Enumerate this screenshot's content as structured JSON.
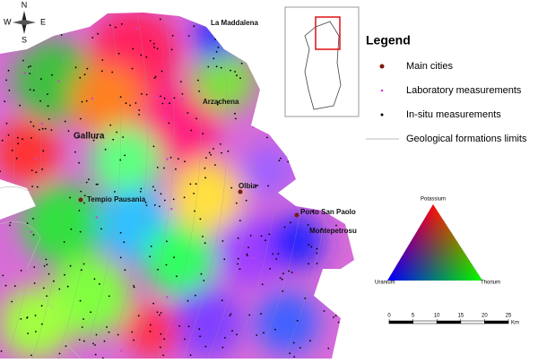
{
  "compass": {
    "n": "N",
    "s": "S",
    "e": "E",
    "w": "W"
  },
  "places": [
    {
      "label": "La Maddalena"
    },
    {
      "label": "Arzachena"
    },
    {
      "label": "Gallura"
    },
    {
      "label": "Olbia"
    },
    {
      "label": "Tempio Pausania"
    },
    {
      "label": "Porto San Paolo"
    },
    {
      "label": "Montepetrosu"
    }
  ],
  "legend": {
    "title": "Legend",
    "items": [
      {
        "label": "Main cities"
      },
      {
        "label": "Laboratory measurements"
      },
      {
        "label": "In-situ measurements"
      },
      {
        "label": "Geological formations limits"
      }
    ]
  },
  "ternary": {
    "top": "Potassium",
    "left": "Uranium",
    "right": "Thorium"
  },
  "scale_bar": {
    "ticks": [
      0,
      5,
      10,
      15,
      20,
      25
    ],
    "unit": "Km"
  }
}
